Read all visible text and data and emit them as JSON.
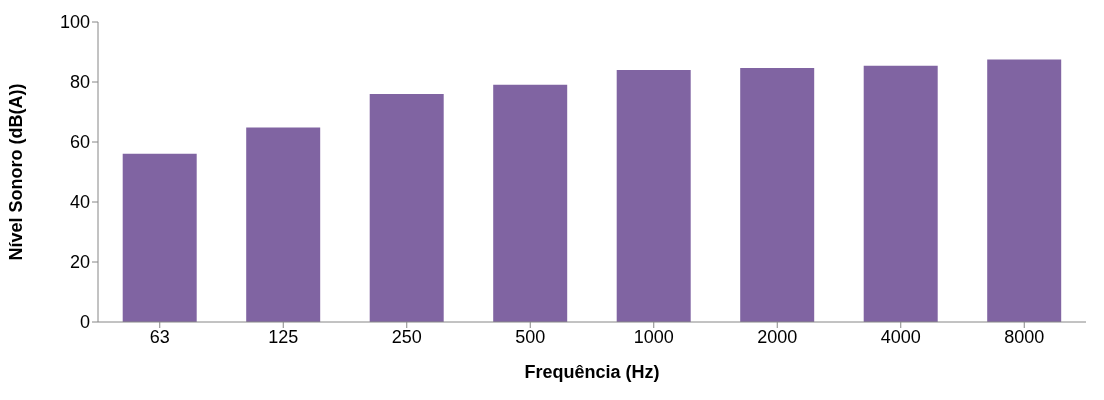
{
  "chart_data": {
    "type": "bar",
    "xlabel": "Frequência (Hz)",
    "ylabel": "Nível Sonoro (dB(A))",
    "categories": [
      "63",
      "125",
      "250",
      "500",
      "1000",
      "2000",
      "4000",
      "8000"
    ],
    "values": [
      56.1,
      64.8,
      76.0,
      79.1,
      84.0,
      84.7,
      85.4,
      87.5
    ],
    "color": "#8064a2",
    "ylim": [
      0,
      100
    ],
    "yticks": [
      0,
      20,
      40,
      60,
      80,
      100
    ]
  }
}
